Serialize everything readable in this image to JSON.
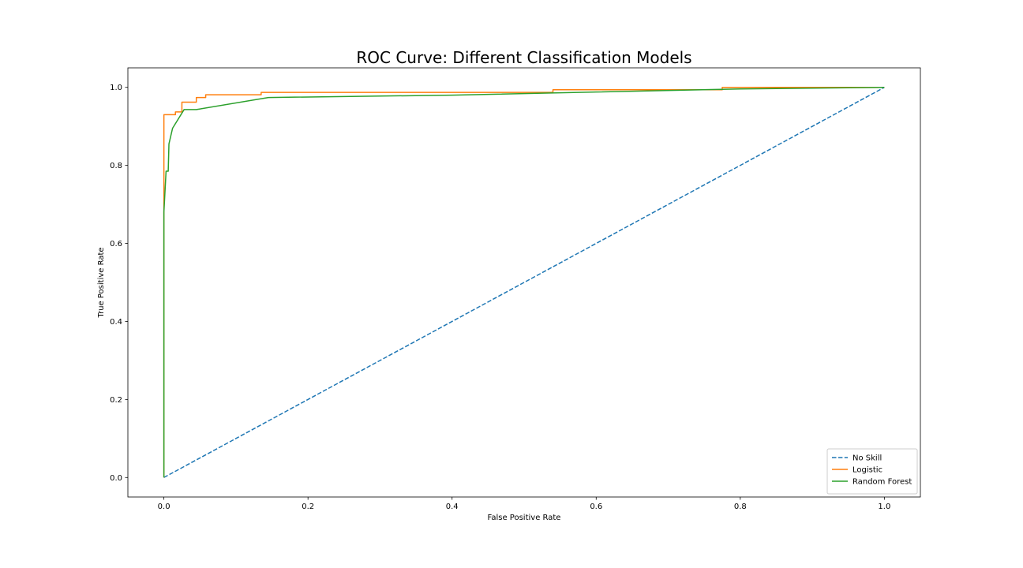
{
  "chart_data": {
    "type": "line",
    "title": "ROC Curve: Different Classification Models",
    "xlabel": "False Positive Rate",
    "ylabel": "True Positive Rate",
    "xlim": [
      -0.05,
      1.05
    ],
    "ylim": [
      -0.05,
      1.05
    ],
    "xticks": [
      0.0,
      0.2,
      0.4,
      0.6,
      0.8,
      1.0
    ],
    "xtick_labels": [
      "0.0",
      "0.2",
      "0.4",
      "0.6",
      "0.8",
      "1.0"
    ],
    "yticks": [
      0.0,
      0.2,
      0.4,
      0.6,
      0.8,
      1.0
    ],
    "ytick_labels": [
      "0.0",
      "0.2",
      "0.4",
      "0.6",
      "0.8",
      "1.0"
    ],
    "grid": false,
    "legend_position": "lower-right",
    "series": [
      {
        "name": "No Skill",
        "color": "#1f77b4",
        "style": "dashed",
        "x": [
          0.0,
          1.0
        ],
        "y": [
          0.0,
          1.0
        ]
      },
      {
        "name": "Logistic",
        "color": "#ff7f0e",
        "style": "solid",
        "x": [
          0.0,
          0.0,
          0.0,
          0.0,
          0.016,
          0.016,
          0.025,
          0.025,
          0.045,
          0.045,
          0.058,
          0.058,
          0.135,
          0.135,
          0.54,
          0.54,
          0.775,
          0.775,
          1.0
        ],
        "y": [
          0.0,
          0.68,
          0.93,
          0.93,
          0.93,
          0.937,
          0.937,
          0.962,
          0.962,
          0.974,
          0.974,
          0.981,
          0.981,
          0.987,
          0.987,
          0.994,
          0.994,
          1.0,
          1.0
        ]
      },
      {
        "name": "Random Forest",
        "color": "#2ca02c",
        "style": "solid",
        "x": [
          0.0,
          0.0,
          0.003,
          0.006,
          0.007,
          0.012,
          0.028,
          0.045,
          0.145,
          0.4,
          0.6,
          0.8,
          1.0
        ],
        "y": [
          0.0,
          0.68,
          0.785,
          0.785,
          0.855,
          0.895,
          0.943,
          0.943,
          0.974,
          0.98,
          0.988,
          0.996,
          1.0
        ]
      }
    ]
  }
}
